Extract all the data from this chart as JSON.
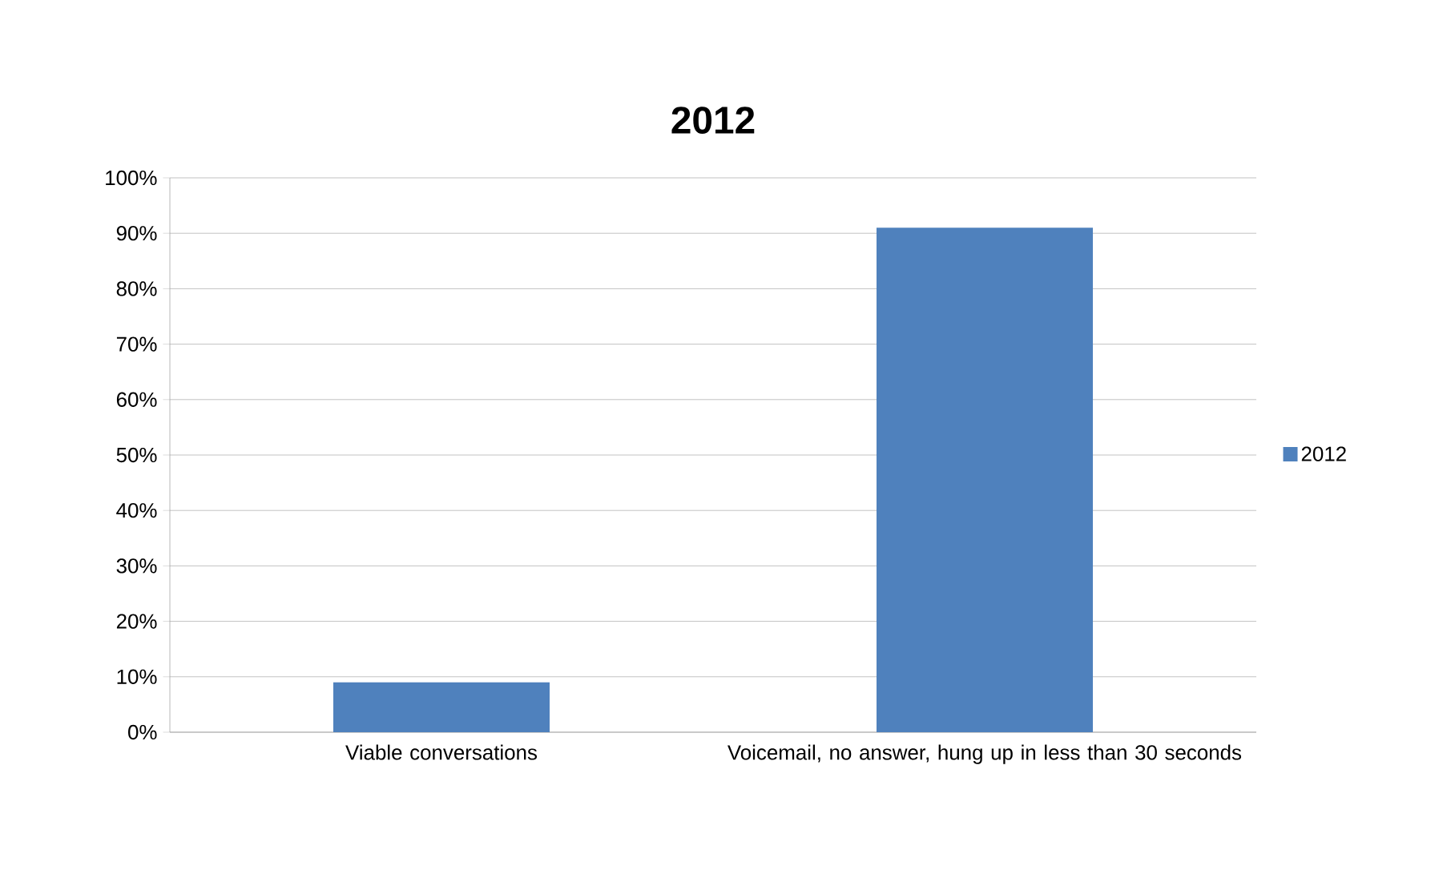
{
  "chart_data": {
    "type": "bar",
    "title": "2012",
    "categories": [
      "Viable conversations",
      "Voicemail, no answer, hung up in less than 30 seconds"
    ],
    "series": [
      {
        "name": "2012",
        "color": "#4f81bd",
        "values": [
          9,
          91
        ]
      }
    ],
    "ylim": [
      0,
      100
    ],
    "yticks": [
      {
        "value": 0,
        "label": "0%"
      },
      {
        "value": 10,
        "label": "10%"
      },
      {
        "value": 20,
        "label": "20%"
      },
      {
        "value": 30,
        "label": "30%"
      },
      {
        "value": 40,
        "label": "40%"
      },
      {
        "value": 50,
        "label": "50%"
      },
      {
        "value": 60,
        "label": "60%"
      },
      {
        "value": 70,
        "label": "70%"
      },
      {
        "value": 80,
        "label": "80%"
      },
      {
        "value": 90,
        "label": "90%"
      },
      {
        "value": 100,
        "label": "100%"
      }
    ],
    "grid": "y",
    "legend": "right"
  }
}
